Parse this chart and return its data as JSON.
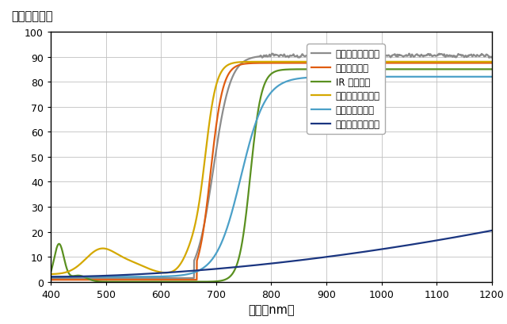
{
  "title_y": "透過率（％）",
  "xlabel": "波長（nm）",
  "xlim": [
    400,
    1200
  ],
  "ylim": [
    0,
    100
  ],
  "xticks": [
    400,
    500,
    600,
    700,
    800,
    900,
    1000,
    1100,
    1200
  ],
  "yticks": [
    0,
    10,
    20,
    30,
    40,
    50,
    60,
    70,
    80,
    90,
    100
  ],
  "legend_labels": [
    "環境の熱センサー",
    "人感センサー",
    "IR センサー",
    "眼紋認証センサー",
    "カメラセンサー",
    "環境明暗センサー"
  ],
  "line_colors": [
    "#8C8C8C",
    "#E05C10",
    "#5A9020",
    "#D4A800",
    "#4BA0C8",
    "#1A3580"
  ],
  "background_color": "#FFFFFF"
}
